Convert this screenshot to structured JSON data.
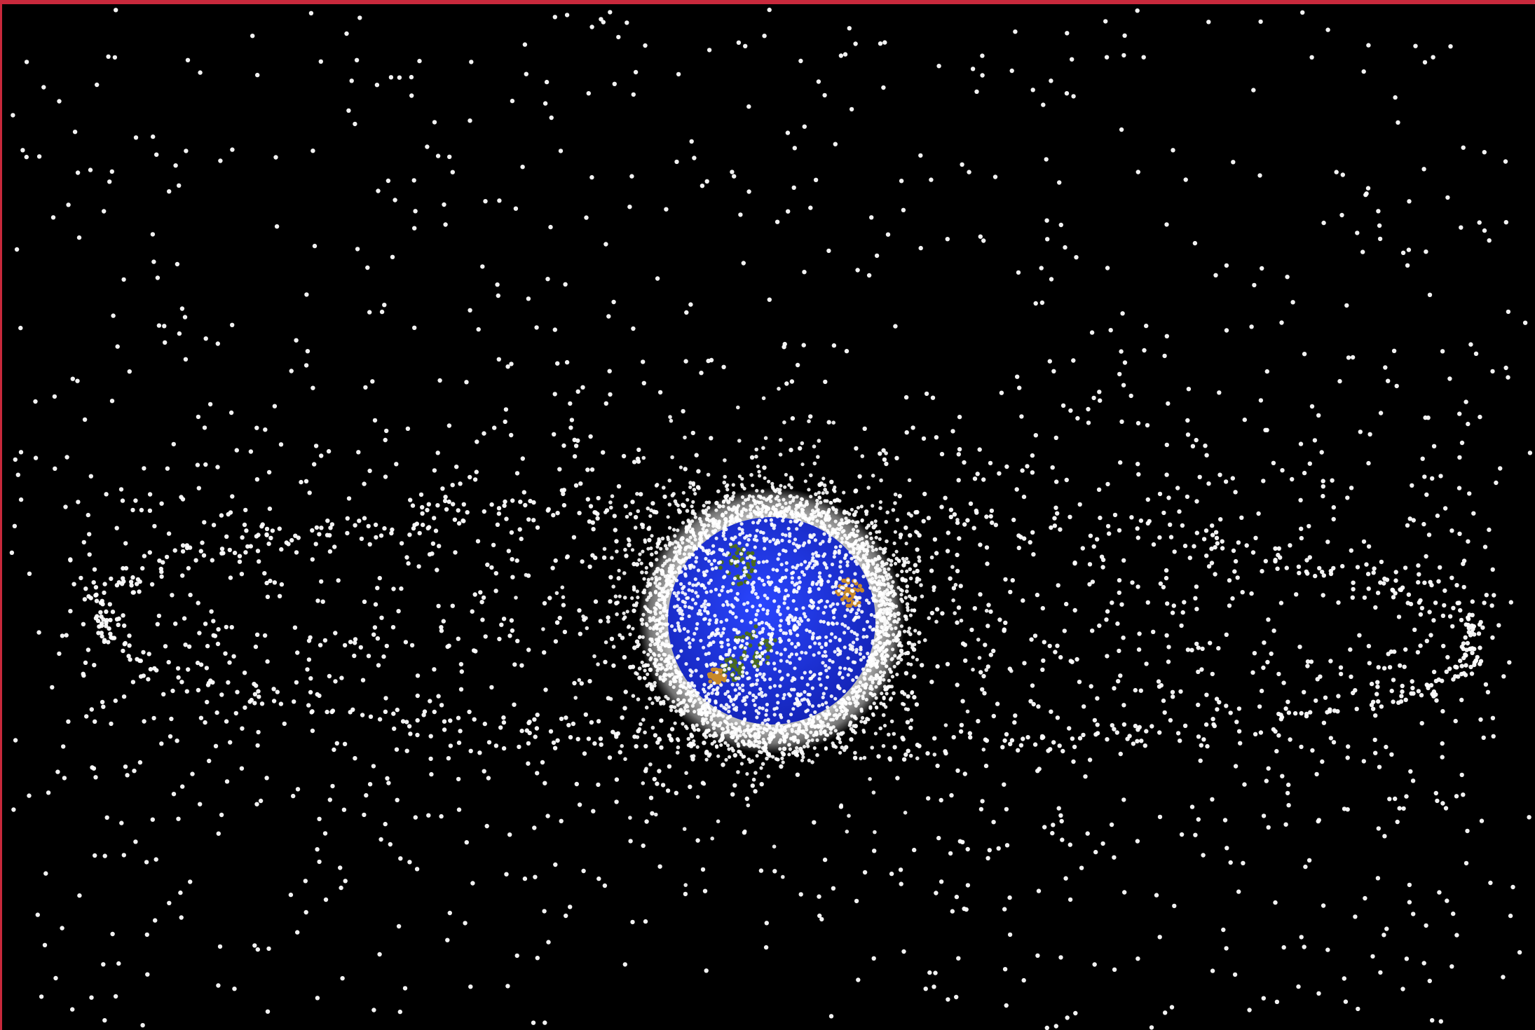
{
  "image": {
    "subject": "",
    "background_color": "#000000",
    "frame_color": "#c8293c",
    "debris_color": "#ffffff",
    "earth": {
      "ocean_color": "#1b2fd8",
      "land_color": "#4a6b1e",
      "desert_color": "#c98a2a",
      "halo_color": "#ffffff"
    }
  }
}
